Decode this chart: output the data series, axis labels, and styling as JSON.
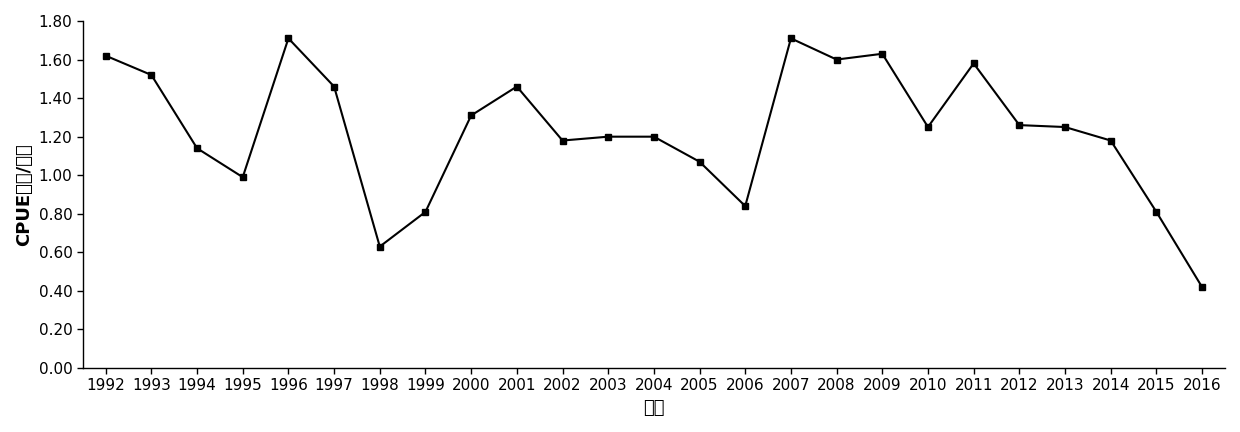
{
  "years": [
    1992,
    1993,
    1994,
    1995,
    1996,
    1997,
    1998,
    1999,
    2000,
    2001,
    2002,
    2003,
    2004,
    2005,
    2006,
    2007,
    2008,
    2009,
    2010,
    2011,
    2012,
    2013,
    2014,
    2015,
    2016
  ],
  "cpue": [
    1.62,
    1.52,
    1.14,
    0.99,
    1.71,
    1.46,
    0.63,
    0.81,
    1.31,
    1.46,
    1.18,
    1.2,
    1.2,
    1.07,
    0.84,
    1.71,
    1.6,
    1.63,
    1.25,
    1.58,
    1.26,
    1.25,
    1.18,
    0.81,
    0.42
  ],
  "xlabel": "年份",
  "ylabel": "CPUE（吨/天）",
  "ylim": [
    0.0,
    1.8
  ],
  "yticks": [
    0.0,
    0.2,
    0.4,
    0.6,
    0.8,
    1.0,
    1.2,
    1.4,
    1.6,
    1.8
  ],
  "line_color": "#000000",
  "marker": "s",
  "marker_size": 4,
  "linewidth": 1.5,
  "bg_color": "#ffffff",
  "tick_fontsize": 11,
  "label_fontsize": 13,
  "label_fontweight": "bold"
}
